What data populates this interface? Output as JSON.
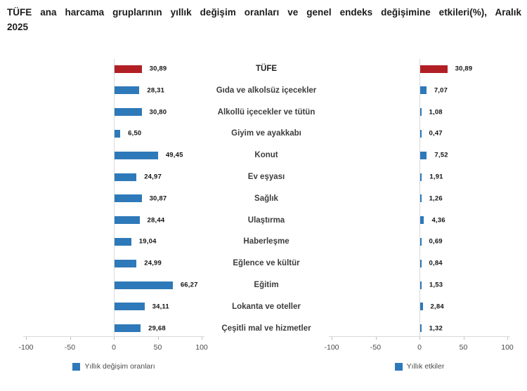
{
  "title_line1": "TÜFE ana harcama gruplarının yıllık değişim oranları ve genel endeks değişimine etkileri(%), Aralık",
  "title_line2": "2025",
  "colors": {
    "bar_blue": "#2E79B9",
    "bar_red": "#B11F24",
    "axis_line": "#D9D9D9",
    "tick_mark": "#BFBFBF"
  },
  "chart_data": [
    {
      "type": "bar",
      "orientation": "horizontal",
      "legend": "Yıllık değişim oranları",
      "categories": [
        "TÜFE",
        "Gıda ve alkolsüz içecekler",
        "Alkollü içecekler ve tütün",
        "Giyim ve ayakkabı",
        "Konut",
        "Ev eşyası",
        "Sağlık",
        "Ulaştırma",
        "Haberleşme",
        "Eğlence ve kültür",
        "Eğitim",
        "Lokanta ve oteller",
        "Çeşitli mal ve hizmetler"
      ],
      "values": [
        30.89,
        28.31,
        30.8,
        6.5,
        49.45,
        24.97,
        30.87,
        28.44,
        19.04,
        24.99,
        66.27,
        34.11,
        29.68
      ],
      "value_labels": [
        "30,89",
        "28,31",
        "30,80",
        "6,50",
        "49,45",
        "24,97",
        "30,87",
        "28,44",
        "19,04",
        "24,99",
        "66,27",
        "34,11",
        "29,68"
      ],
      "highlight_index": 0,
      "xlim": [
        -100,
        100
      ],
      "ticks": [
        -100,
        -50,
        0,
        50,
        100
      ],
      "grid": "zero-line-only",
      "legend_position": "bottom"
    },
    {
      "type": "bar",
      "orientation": "horizontal",
      "legend": "Yıllık etkiler",
      "categories": [
        "TÜFE",
        "Gıda ve alkolsüz içecekler",
        "Alkollü içecekler ve tütün",
        "Giyim ve ayakkabı",
        "Konut",
        "Ev eşyası",
        "Sağlık",
        "Ulaştırma",
        "Haberleşme",
        "Eğlence ve kültür",
        "Eğitim",
        "Lokanta ve oteller",
        "Çeşitli mal ve hizmetler"
      ],
      "values": [
        30.89,
        7.07,
        1.08,
        0.47,
        7.52,
        1.91,
        1.26,
        4.36,
        0.69,
        0.84,
        1.53,
        2.84,
        1.32
      ],
      "value_labels": [
        "30,89",
        "7,07",
        "1,08",
        "0,47",
        "7,52",
        "1,91",
        "1,26",
        "4,36",
        "0,69",
        "0,84",
        "1,53",
        "2,84",
        "1,32"
      ],
      "highlight_index": 0,
      "xlim": [
        -100,
        100
      ],
      "ticks": [
        -100,
        -50,
        0,
        50,
        100
      ],
      "grid": "zero-line-only",
      "legend_position": "bottom"
    }
  ]
}
